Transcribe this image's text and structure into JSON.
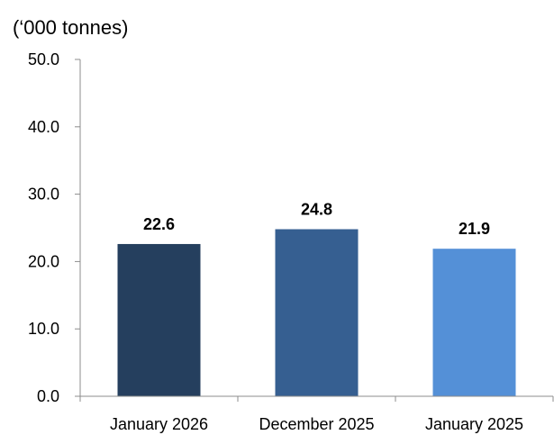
{
  "chart_data": {
    "type": "bar",
    "title": "",
    "ylabel": "(‘000 tonnes)",
    "xlabel": "",
    "categories": [
      "January 2026",
      "December 2025",
      "January 2025"
    ],
    "values": [
      22.6,
      24.8,
      21.9
    ],
    "data_labels": [
      "22.6",
      "24.8",
      "21.9"
    ],
    "bar_colors": [
      "#253f5e",
      "#365f91",
      "#5490d7"
    ],
    "ylim": [
      0,
      50
    ],
    "y_ticks": [
      0,
      10,
      20,
      30,
      40,
      50
    ],
    "y_tick_labels": [
      "0.0",
      "10.0",
      "20.0",
      "30.0",
      "40.0",
      "50.0"
    ],
    "grid": false,
    "legend": "none"
  }
}
